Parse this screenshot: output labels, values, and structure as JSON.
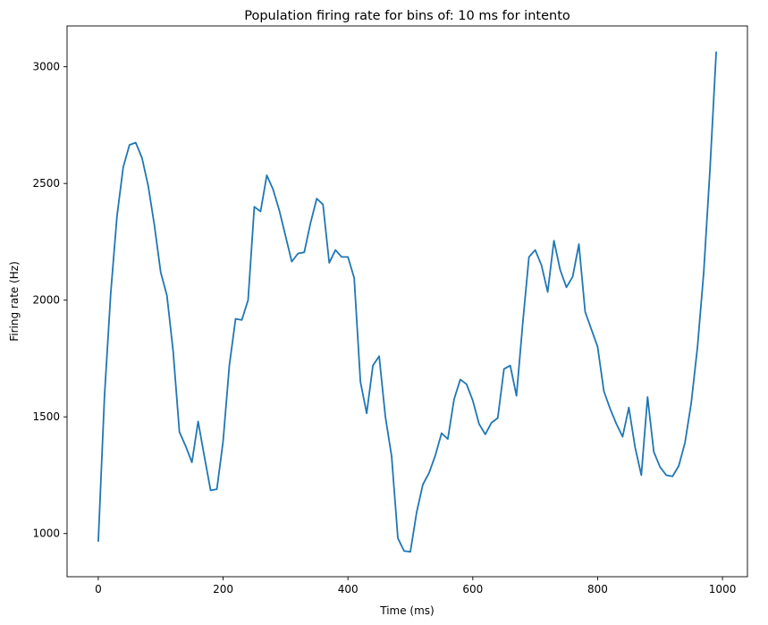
{
  "chart_data": {
    "type": "line",
    "title": "Population firing rate for bins of: 10 ms for intento",
    "xlabel": "Time (ms)",
    "ylabel": "Firing rate (Hz)",
    "xlim": [
      -50,
      1040
    ],
    "ylim": [
      815,
      3175
    ],
    "xticks": [
      0,
      200,
      400,
      600,
      800,
      1000
    ],
    "yticks": [
      1000,
      1500,
      2000,
      2500,
      3000
    ],
    "grid": false,
    "line_color": "#1f77b4",
    "series": [
      {
        "name": "firing rate",
        "x": [
          0,
          10,
          20,
          30,
          40,
          50,
          60,
          70,
          80,
          90,
          100,
          110,
          120,
          130,
          140,
          150,
          160,
          170,
          180,
          190,
          200,
          210,
          220,
          230,
          240,
          250,
          260,
          270,
          280,
          290,
          300,
          310,
          320,
          330,
          340,
          350,
          360,
          370,
          380,
          390,
          400,
          410,
          420,
          430,
          440,
          450,
          460,
          470,
          480,
          490,
          500,
          510,
          520,
          530,
          540,
          550,
          560,
          570,
          580,
          590,
          600,
          610,
          620,
          630,
          640,
          650,
          660,
          670,
          680,
          690,
          700,
          710,
          720,
          730,
          740,
          750,
          760,
          770,
          780,
          790,
          800,
          810,
          820,
          830,
          840,
          850,
          860,
          870,
          880,
          890,
          900,
          910,
          920,
          930,
          940,
          950,
          960,
          970,
          980,
          990
        ],
        "values": [
          965,
          1590,
          2030,
          2360,
          2570,
          2665,
          2675,
          2610,
          2490,
          2320,
          2120,
          2020,
          1780,
          1435,
          1375,
          1305,
          1480,
          1330,
          1185,
          1190,
          1395,
          1720,
          1920,
          1915,
          2000,
          2400,
          2380,
          2535,
          2475,
          2385,
          2275,
          2165,
          2200,
          2205,
          2330,
          2435,
          2410,
          2160,
          2215,
          2185,
          2185,
          2095,
          1650,
          1515,
          1720,
          1760,
          1500,
          1330,
          980,
          925,
          922,
          1090,
          1210,
          1260,
          1335,
          1430,
          1405,
          1575,
          1660,
          1640,
          1570,
          1470,
          1425,
          1475,
          1495,
          1705,
          1720,
          1590,
          1900,
          2185,
          2215,
          2150,
          2035,
          2255,
          2130,
          2055,
          2100,
          2240,
          1950,
          1875,
          1800,
          1610,
          1535,
          1470,
          1415,
          1540,
          1370,
          1250,
          1585,
          1350,
          1285,
          1250,
          1245,
          1290,
          1390,
          1560,
          1800,
          2120,
          2560,
          3065
        ]
      }
    ]
  }
}
